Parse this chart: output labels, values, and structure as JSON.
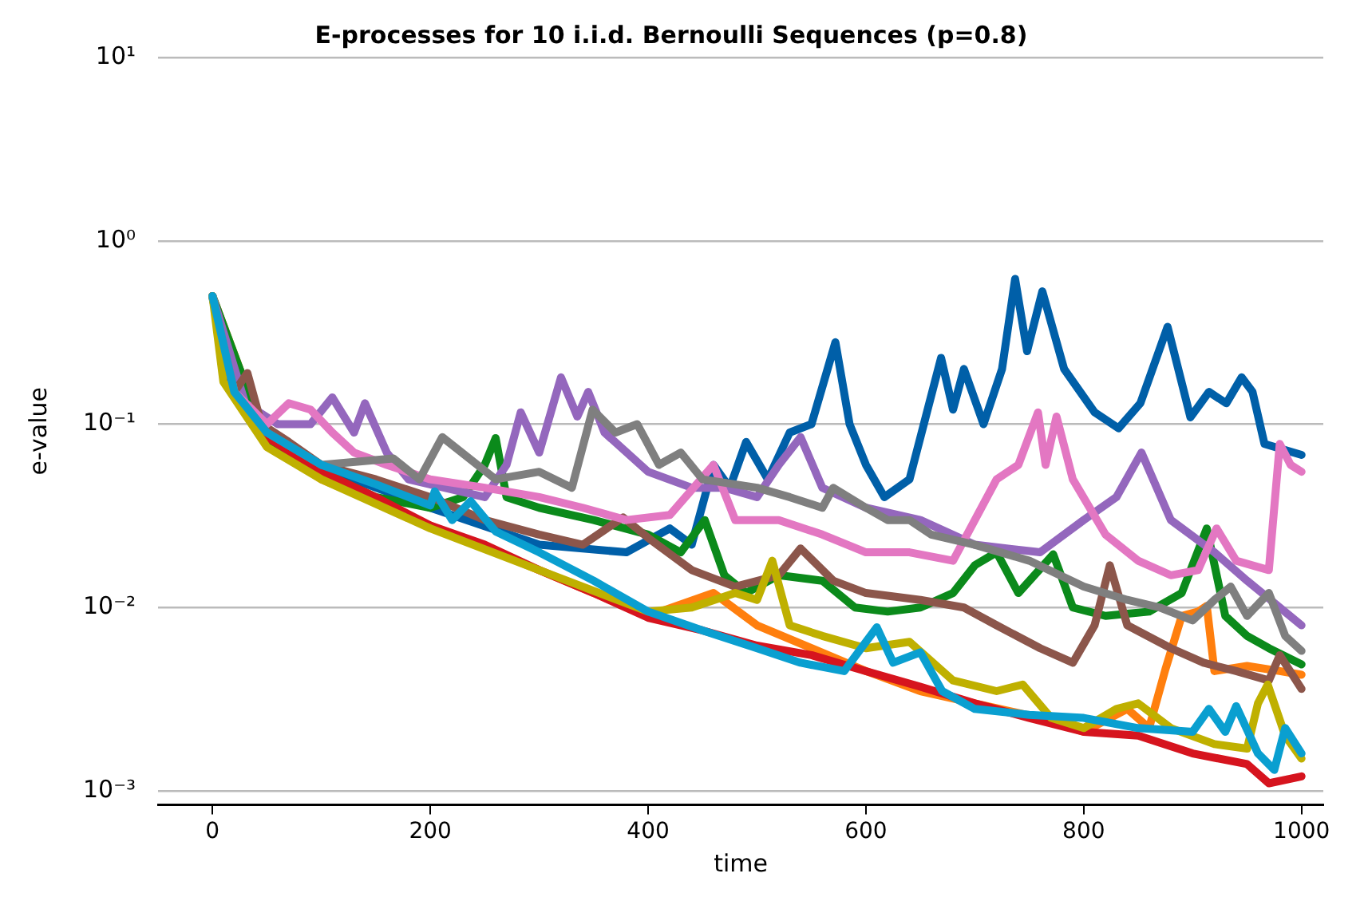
{
  "chart_data": {
    "type": "line",
    "title": "E-processes for 10 i.i.d. Bernoulli Sequences (p=0.8)",
    "xlabel": "time",
    "ylabel": "e-value",
    "log": "y",
    "grid": "y",
    "legend": false,
    "marker": "none",
    "line_style": "solid",
    "xlim": [
      -50,
      1020
    ],
    "xticks": [
      0,
      200,
      400,
      600,
      800,
      1000
    ],
    "ylim": [
      0.00084,
      10
    ],
    "yticks": [
      {
        "value": 0.001,
        "label": "10⁻³"
      },
      {
        "value": 0.01,
        "label": "10⁻²"
      },
      {
        "value": 0.1,
        "label": "10⁻¹"
      },
      {
        "value": 1,
        "label": "10⁰"
      },
      {
        "value": 10,
        "label": "10¹"
      }
    ],
    "series": [
      {
        "color": "#005fa8",
        "x": [
          0,
          20,
          50,
          100,
          200,
          300,
          380,
          420,
          440,
          460,
          475,
          490,
          510,
          530,
          550,
          572,
          585,
          600,
          617,
          640,
          669,
          680,
          690,
          708,
          725,
          737,
          748,
          762,
          782,
          810,
          832,
          852,
          877,
          898,
          915,
          931,
          945,
          955,
          966,
          1000
        ],
        "values": [
          0.49,
          0.14,
          0.085,
          0.058,
          0.035,
          0.022,
          0.02,
          0.027,
          0.022,
          0.06,
          0.045,
          0.08,
          0.05,
          0.09,
          0.1,
          0.28,
          0.1,
          0.06,
          0.04,
          0.05,
          0.23,
          0.12,
          0.2,
          0.1,
          0.2,
          0.62,
          0.25,
          0.53,
          0.2,
          0.116,
          0.095,
          0.13,
          0.34,
          0.109,
          0.15,
          0.13,
          0.18,
          0.15,
          0.078,
          0.068
        ]
      },
      {
        "color": "#ff7f0e",
        "x": [
          0,
          50,
          100,
          200,
          300,
          400,
          460,
          500,
          550,
          600,
          650,
          700,
          760,
          800,
          840,
          860,
          875,
          890,
          905,
          913,
          920,
          950,
          980,
          1000
        ],
        "values": [
          0.5,
          0.08,
          0.05,
          0.028,
          0.016,
          0.009,
          0.012,
          0.008,
          0.006,
          0.0045,
          0.0035,
          0.003,
          0.0025,
          0.0021,
          0.0028,
          0.0022,
          0.0046,
          0.009,
          0.0095,
          0.0102,
          0.0045,
          0.0048,
          0.0045,
          0.0043
        ]
      },
      {
        "color": "#0b8a1b",
        "x": [
          0,
          50,
          100,
          150,
          200,
          230,
          250,
          260,
          270,
          300,
          350,
          400,
          430,
          452,
          470,
          490,
          520,
          560,
          590,
          620,
          650,
          680,
          700,
          720,
          740,
          772,
          790,
          820,
          860,
          890,
          913,
          930,
          950,
          970,
          1000
        ],
        "values": [
          0.5,
          0.08,
          0.055,
          0.04,
          0.035,
          0.04,
          0.06,
          0.084,
          0.04,
          0.035,
          0.03,
          0.025,
          0.02,
          0.03,
          0.015,
          0.012,
          0.015,
          0.014,
          0.01,
          0.0095,
          0.01,
          0.012,
          0.017,
          0.02,
          0.012,
          0.0195,
          0.01,
          0.009,
          0.0095,
          0.012,
          0.027,
          0.009,
          0.007,
          0.006,
          0.0049
        ]
      },
      {
        "color": "#d6141e",
        "x": [
          25,
          50,
          100,
          150,
          200,
          250,
          300,
          350,
          400,
          450,
          500,
          550,
          600,
          650,
          700,
          750,
          800,
          850,
          900,
          950,
          970,
          1000
        ],
        "values": [
          0.13,
          0.085,
          0.055,
          0.04,
          0.028,
          0.022,
          0.016,
          0.012,
          0.0088,
          0.0075,
          0.0062,
          0.0055,
          0.0045,
          0.0037,
          0.003,
          0.0025,
          0.0021,
          0.002,
          0.0016,
          0.0014,
          0.0011,
          0.0012
        ]
      },
      {
        "color": "#9467bd",
        "x": [
          0,
          30,
          60,
          90,
          110,
          130,
          140,
          160,
          180,
          250,
          270,
          283,
          300,
          320,
          335,
          345,
          360,
          400,
          440,
          470,
          500,
          520,
          540,
          560,
          600,
          650,
          700,
          760,
          800,
          830,
          853,
          880,
          920,
          950,
          1000
        ],
        "values": [
          0.5,
          0.13,
          0.1,
          0.1,
          0.14,
          0.09,
          0.13,
          0.07,
          0.05,
          0.04,
          0.06,
          0.116,
          0.07,
          0.18,
          0.11,
          0.15,
          0.09,
          0.055,
          0.045,
          0.045,
          0.04,
          0.06,
          0.085,
          0.045,
          0.035,
          0.03,
          0.022,
          0.02,
          0.03,
          0.04,
          0.07,
          0.03,
          0.02,
          0.014,
          0.008
        ]
      },
      {
        "color": "#8c564b",
        "x": [
          0,
          20,
          32,
          45,
          70,
          100,
          150,
          200,
          250,
          300,
          340,
          377,
          400,
          440,
          480,
          520,
          540,
          570,
          600,
          650,
          690,
          720,
          760,
          790,
          810,
          824,
          840,
          880,
          910,
          940,
          970,
          980,
          1000
        ],
        "values": [
          0.5,
          0.15,
          0.19,
          0.1,
          0.08,
          0.06,
          0.05,
          0.04,
          0.03,
          0.025,
          0.022,
          0.031,
          0.024,
          0.016,
          0.013,
          0.015,
          0.021,
          0.014,
          0.012,
          0.011,
          0.01,
          0.008,
          0.006,
          0.005,
          0.008,
          0.017,
          0.008,
          0.006,
          0.005,
          0.0045,
          0.004,
          0.0055,
          0.0036
        ]
      },
      {
        "color": "#e377c2",
        "x": [
          0,
          20,
          50,
          70,
          90,
          110,
          130,
          160,
          200,
          250,
          300,
          340,
          380,
          420,
          460,
          480,
          520,
          560,
          600,
          640,
          680,
          700,
          720,
          740,
          758,
          765,
          775,
          790,
          820,
          850,
          880,
          905,
          922,
          940,
          970,
          980,
          990,
          1000
        ],
        "values": [
          0.5,
          0.15,
          0.1,
          0.13,
          0.12,
          0.09,
          0.07,
          0.06,
          0.05,
          0.045,
          0.04,
          0.035,
          0.03,
          0.032,
          0.06,
          0.03,
          0.03,
          0.025,
          0.02,
          0.02,
          0.018,
          0.03,
          0.05,
          0.06,
          0.116,
          0.06,
          0.11,
          0.05,
          0.025,
          0.018,
          0.015,
          0.016,
          0.027,
          0.018,
          0.016,
          0.078,
          0.06,
          0.055
        ]
      },
      {
        "color": "#7f7f7f",
        "x": [
          0,
          20,
          50,
          100,
          166,
          190,
          211,
          260,
          300,
          330,
          349,
          370,
          390,
          410,
          430,
          450,
          500,
          530,
          560,
          570,
          600,
          620,
          640,
          660,
          700,
          750,
          800,
          840,
          870,
          900,
          920,
          935,
          950,
          970,
          985,
          1000
        ],
        "values": [
          0.5,
          0.15,
          0.09,
          0.06,
          0.065,
          0.05,
          0.085,
          0.05,
          0.055,
          0.045,
          0.12,
          0.09,
          0.1,
          0.06,
          0.07,
          0.05,
          0.045,
          0.04,
          0.035,
          0.045,
          0.035,
          0.03,
          0.03,
          0.025,
          0.022,
          0.018,
          0.013,
          0.011,
          0.01,
          0.0085,
          0.011,
          0.013,
          0.009,
          0.012,
          0.007,
          0.0058
        ]
      },
      {
        "color": "#bfb000",
        "x": [
          0,
          10,
          50,
          100,
          200,
          300,
          400,
          440,
          480,
          500,
          514,
          530,
          560,
          600,
          640,
          680,
          720,
          744,
          770,
          800,
          830,
          850,
          880,
          920,
          950,
          960,
          969,
          985,
          1000
        ],
        "values": [
          0.5,
          0.17,
          0.075,
          0.05,
          0.027,
          0.016,
          0.0095,
          0.01,
          0.012,
          0.011,
          0.018,
          0.008,
          0.007,
          0.006,
          0.0065,
          0.004,
          0.0035,
          0.0038,
          0.0025,
          0.0022,
          0.0028,
          0.003,
          0.0022,
          0.0018,
          0.0017,
          0.003,
          0.0038,
          0.002,
          0.0015
        ]
      },
      {
        "color": "#0a9fd0",
        "x": [
          0,
          20,
          50,
          100,
          150,
          200,
          204,
          220,
          237,
          260,
          300,
          350,
          400,
          450,
          500,
          540,
          580,
          610,
          625,
          650,
          670,
          700,
          750,
          800,
          850,
          900,
          915,
          930,
          940,
          960,
          975,
          985,
          1000
        ],
        "values": [
          0.5,
          0.15,
          0.09,
          0.06,
          0.047,
          0.036,
          0.043,
          0.03,
          0.038,
          0.026,
          0.02,
          0.014,
          0.0095,
          0.0075,
          0.006,
          0.005,
          0.0045,
          0.0078,
          0.005,
          0.0057,
          0.0035,
          0.0028,
          0.0026,
          0.0025,
          0.0022,
          0.0021,
          0.0028,
          0.0021,
          0.0029,
          0.0016,
          0.0013,
          0.0022,
          0.0016
        ]
      }
    ]
  }
}
